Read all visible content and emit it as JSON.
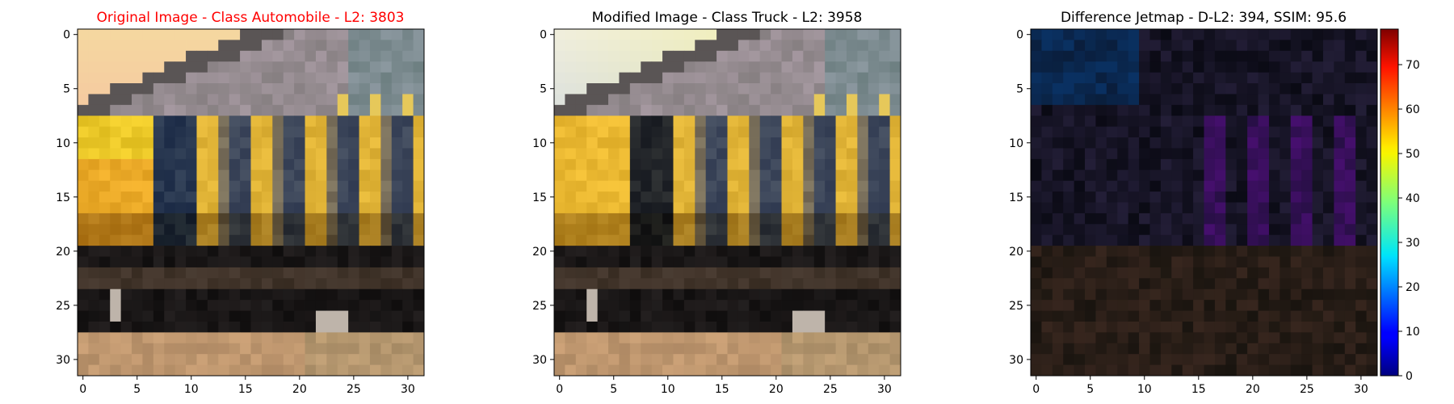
{
  "panels": [
    {
      "title": "Original Image - Class Automobile - L2: 3803",
      "title_color": "#ff0000",
      "x_ticks": [
        "0",
        "5",
        "10",
        "15",
        "20",
        "25",
        "30"
      ],
      "y_ticks": [
        "0",
        "5",
        "10",
        "15",
        "20",
        "25",
        "30"
      ],
      "tick_values": [
        0,
        5,
        10,
        15,
        20,
        25,
        30
      ],
      "image_size": 32,
      "image_kind": "original-car"
    },
    {
      "title": "Modified Image - Class Truck - L2: 3958",
      "title_color": "#000000",
      "x_ticks": [
        "0",
        "5",
        "10",
        "15",
        "20",
        "25",
        "30"
      ],
      "y_ticks": [
        "0",
        "5",
        "10",
        "15",
        "20",
        "25",
        "30"
      ],
      "tick_values": [
        0,
        5,
        10,
        15,
        20,
        25,
        30
      ],
      "image_size": 32,
      "image_kind": "modified-car"
    },
    {
      "title": "Difference Jetmap - D-L2: 394, SSIM: 95.6",
      "title_color": "#000000",
      "x_ticks": [
        "0",
        "5",
        "10",
        "15",
        "20",
        "25",
        "30"
      ],
      "y_ticks": [
        "0",
        "5",
        "10",
        "15",
        "20",
        "25",
        "30"
      ],
      "tick_values": [
        0,
        5,
        10,
        15,
        20,
        25,
        30
      ],
      "image_size": 32,
      "image_kind": "difference-jetmap"
    }
  ],
  "colorbar": {
    "ticks": [
      "0",
      "10",
      "20",
      "30",
      "40",
      "50",
      "60",
      "70"
    ],
    "tick_values": [
      0,
      10,
      20,
      30,
      40,
      50,
      60,
      70
    ],
    "min": 0,
    "max": 78,
    "colormap": "jet"
  }
}
